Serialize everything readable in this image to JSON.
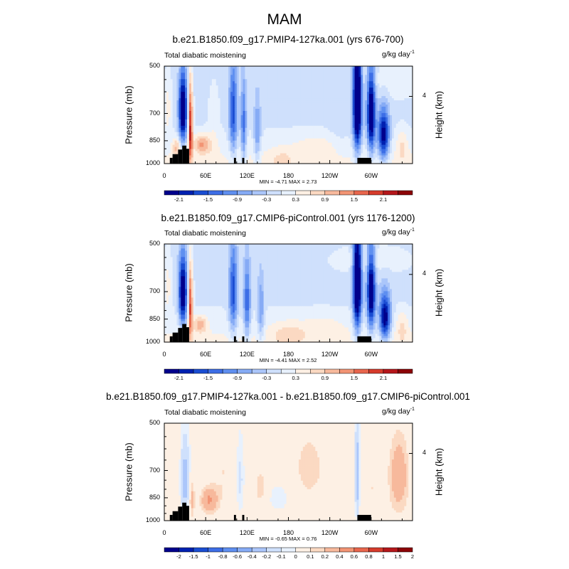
{
  "main_title": "MAM",
  "colors": {
    "land": "#000000",
    "axis": "#000000",
    "sequential_palette_v": [
      "#00008c",
      "#0021b0",
      "#1a4dd2",
      "#3d6ee6",
      "#5f8ff0",
      "#86abf5",
      "#abc6fa",
      "#cfe0fc",
      "#e8f1fd",
      "#fdf0e4",
      "#fbd9c2",
      "#f7b99c",
      "#f29474",
      "#e8664d",
      "#d63b2c",
      "#b5171b",
      "#8c0407"
    ],
    "diff_palette_v": [
      "#00008c",
      "#0021b0",
      "#1a4dd2",
      "#3d6ee6",
      "#5f8ff0",
      "#86abf5",
      "#abc6fa",
      "#cfe0fc",
      "#e8f1fd",
      "#fdf0e4",
      "#fbd9c2",
      "#f7b99c",
      "#f29474",
      "#e8664d",
      "#d63b2c",
      "#b5171b",
      "#8c0407"
    ]
  },
  "chart_data": [
    {
      "type": "heatmap",
      "title": "b.e21.B1850.f09_g17.PMIP4-127ka.001 (yrs 676-700)",
      "left_label": "Total diabatic moistening",
      "units": "g/kg day",
      "units_exp": "-1",
      "ylabel": "Pressure (mb)",
      "y2label": "Height (km)",
      "y2_tick": "4",
      "yticks": [
        "500",
        "700",
        "850",
        "1000"
      ],
      "xticks": [
        "0",
        "60E",
        "120E",
        "180",
        "120W",
        "60W"
      ],
      "ylim": [
        1000,
        500
      ],
      "xlim": [
        0,
        360
      ],
      "stats": "MIN =  -4.71  MAX =   2.73",
      "colorbar_labels": [
        "-2.1",
        "-1.5",
        "-0.9",
        "-0.3",
        "0.3",
        "0.9",
        "1.5",
        "2.1"
      ],
      "levels": [
        -2.4,
        -2.1,
        -1.8,
        -1.5,
        -1.2,
        -0.9,
        -0.6,
        -0.3,
        0,
        0.3,
        0.6,
        0.9,
        1.2,
        1.5,
        1.8,
        2.1,
        2.4
      ],
      "features": [
        {
          "lon": 5,
          "p": 680,
          "sw": 5,
          "sp": 130,
          "v": 0.5
        },
        {
          "lon": 18,
          "p": 890,
          "sw": 6,
          "sp": 60,
          "v": 0.8
        },
        {
          "lon": 27,
          "p": 680,
          "sw": 6,
          "sp": 170,
          "v": -2.8
        },
        {
          "lon": 38,
          "p": 760,
          "sw": 3,
          "sp": 220,
          "v": 2.3
        },
        {
          "lon": 55,
          "p": 870,
          "sw": 12,
          "sp": 60,
          "v": 1.1
        },
        {
          "lon": 72,
          "p": 800,
          "sw": 8,
          "sp": 200,
          "v": 0.25
        },
        {
          "lon": 100,
          "p": 690,
          "sw": 6,
          "sp": 230,
          "v": -1.6
        },
        {
          "lon": 115,
          "p": 760,
          "sw": 4,
          "sp": 230,
          "v": -1.3
        },
        {
          "lon": 135,
          "p": 800,
          "sw": 5,
          "sp": 200,
          "v": -0.9
        },
        {
          "lon": 170,
          "p": 960,
          "sw": 20,
          "sp": 70,
          "v": 0.35
        },
        {
          "lon": 220,
          "p": 880,
          "sw": 35,
          "sp": 80,
          "v": 0.3
        },
        {
          "lon": 255,
          "p": 700,
          "sw": 15,
          "sp": 200,
          "v": -0.25
        },
        {
          "lon": 280,
          "p": 640,
          "sw": 6,
          "sp": 250,
          "v": -3.5
        },
        {
          "lon": 300,
          "p": 700,
          "sw": 6,
          "sp": 210,
          "v": -2.7
        },
        {
          "lon": 318,
          "p": 820,
          "sw": 8,
          "sp": 150,
          "v": -2.4
        },
        {
          "lon": 345,
          "p": 880,
          "sw": 8,
          "sp": 100,
          "v": 0.5
        },
        {
          "lon": 330,
          "p": 560,
          "sw": 40,
          "sp": 60,
          "v": 0.25
        }
      ],
      "background": -0.35,
      "bg_bottom": 0.1
    },
    {
      "type": "heatmap",
      "title": "b.e21.B1850.f09_g17.CMIP6-piControl.001 (yrs 1176-1200)",
      "left_label": "Total diabatic moistening",
      "units": "g/kg day",
      "units_exp": "-1",
      "ylabel": "Pressure (mb)",
      "y2label": "Height (km)",
      "y2_tick": "4",
      "yticks": [
        "500",
        "700",
        "850",
        "1000"
      ],
      "xticks": [
        "0",
        "60E",
        "120E",
        "180",
        "120W",
        "60W"
      ],
      "ylim": [
        1000,
        500
      ],
      "xlim": [
        0,
        360
      ],
      "stats": "MIN =  -4.41  MAX =   2.52",
      "colorbar_labels": [
        "-2.1",
        "-1.5",
        "-0.9",
        "-0.3",
        "0.3",
        "0.9",
        "1.5",
        "2.1"
      ],
      "levels": [
        -2.4,
        -2.1,
        -1.8,
        -1.5,
        -1.2,
        -0.9,
        -0.6,
        -0.3,
        0,
        0.3,
        0.6,
        0.9,
        1.2,
        1.5,
        1.8,
        2.1,
        2.4
      ],
      "features": [
        {
          "lon": 5,
          "p": 680,
          "sw": 5,
          "sp": 130,
          "v": 0.5
        },
        {
          "lon": 27,
          "p": 700,
          "sw": 6,
          "sp": 180,
          "v": -2.6
        },
        {
          "lon": 38,
          "p": 760,
          "sw": 3,
          "sp": 200,
          "v": 2.0
        },
        {
          "lon": 52,
          "p": 880,
          "sw": 10,
          "sp": 55,
          "v": 0.9
        },
        {
          "lon": 100,
          "p": 700,
          "sw": 6,
          "sp": 230,
          "v": -1.6
        },
        {
          "lon": 120,
          "p": 760,
          "sw": 5,
          "sp": 220,
          "v": -1.4
        },
        {
          "lon": 140,
          "p": 800,
          "sw": 5,
          "sp": 200,
          "v": -0.9
        },
        {
          "lon": 180,
          "p": 940,
          "sw": 25,
          "sp": 80,
          "v": 0.5
        },
        {
          "lon": 230,
          "p": 900,
          "sw": 30,
          "sp": 80,
          "v": 0.3
        },
        {
          "lon": 280,
          "p": 650,
          "sw": 6,
          "sp": 250,
          "v": -3.3
        },
        {
          "lon": 300,
          "p": 700,
          "sw": 6,
          "sp": 210,
          "v": -2.6
        },
        {
          "lon": 320,
          "p": 840,
          "sw": 8,
          "sp": 140,
          "v": -2.5
        },
        {
          "lon": 345,
          "p": 900,
          "sw": 8,
          "sp": 100,
          "v": 0.5
        },
        {
          "lon": 300,
          "p": 560,
          "sw": 50,
          "sp": 50,
          "v": 0.25
        }
      ],
      "background": -0.35,
      "bg_bottom": 0.1
    },
    {
      "type": "heatmap",
      "title": "b.e21.B1850.f09_g17.PMIP4-127ka.001 - b.e21.B1850.f09_g17.CMIP6-piControl.001",
      "left_label": "Total diabatic moistening",
      "units": "g/kg day",
      "units_exp": "-1",
      "ylabel": "Pressure (mb)",
      "y2label": "Height (km)",
      "y2_tick": "4",
      "yticks": [
        "500",
        "700",
        "850",
        "1000"
      ],
      "xticks": [
        "0",
        "60E",
        "120E",
        "180",
        "120W",
        "60W"
      ],
      "ylim": [
        1000,
        500
      ],
      "xlim": [
        0,
        360
      ],
      "stats": "MIN =  -0.65  MAX =   0.76",
      "colorbar_labels": [
        "-2",
        "-1.5",
        "-1",
        "-0.8",
        "-0.6",
        "-0.4",
        "-0.2",
        "-0.1",
        "0",
        "0.1",
        "0.2",
        "0.4",
        "0.6",
        "0.8",
        "1",
        "1.5",
        "2"
      ],
      "levels": [
        -2.5,
        -2,
        -1.5,
        -1,
        -0.8,
        -0.6,
        -0.4,
        -0.2,
        -0.1,
        0.1,
        0.2,
        0.4,
        0.6,
        0.8,
        1,
        1.5,
        2,
        2.5
      ],
      "features": [
        {
          "lon": 10,
          "p": 700,
          "sw": 10,
          "sp": 200,
          "v": 0.15
        },
        {
          "lon": 30,
          "p": 750,
          "sw": 6,
          "sp": 200,
          "v": -0.5
        },
        {
          "lon": 40,
          "p": 850,
          "sw": 4,
          "sp": 120,
          "v": 0.3
        },
        {
          "lon": 65,
          "p": 860,
          "sw": 12,
          "sp": 80,
          "v": 0.45
        },
        {
          "lon": 85,
          "p": 700,
          "sw": 15,
          "sp": 200,
          "v": 0.15
        },
        {
          "lon": 110,
          "p": 750,
          "sw": 5,
          "sp": 200,
          "v": -0.2
        },
        {
          "lon": 140,
          "p": 780,
          "sw": 10,
          "sp": 120,
          "v": 0.2
        },
        {
          "lon": 165,
          "p": 860,
          "sw": 15,
          "sp": 80,
          "v": -0.15
        },
        {
          "lon": 210,
          "p": 680,
          "sw": 20,
          "sp": 150,
          "v": 0.25
        },
        {
          "lon": 245,
          "p": 800,
          "sw": 15,
          "sp": 200,
          "v": 0.1
        },
        {
          "lon": 280,
          "p": 720,
          "sw": 3,
          "sp": 260,
          "v": -0.5
        },
        {
          "lon": 300,
          "p": 760,
          "sw": 8,
          "sp": 200,
          "v": 0.15
        },
        {
          "lon": 340,
          "p": 720,
          "sw": 15,
          "sp": 200,
          "v": 0.4
        }
      ],
      "background": -0.05,
      "bg_bottom": 0.0
    }
  ]
}
